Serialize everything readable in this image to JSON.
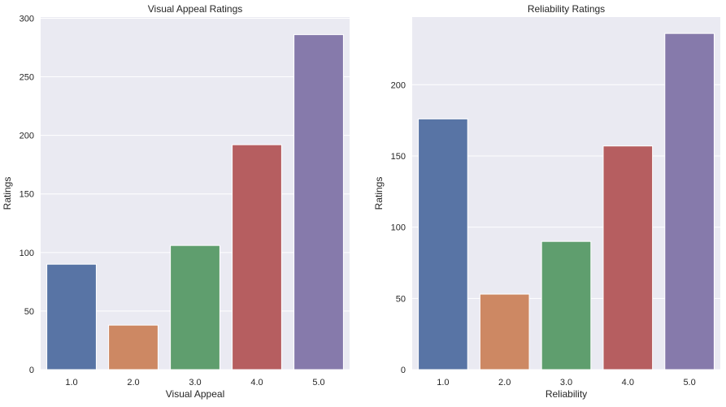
{
  "chart_data": [
    {
      "type": "bar",
      "title": "Visual Appeal Ratings",
      "xlabel": "Visual Appeal",
      "ylabel": "Ratings",
      "categories": [
        "1.0",
        "2.0",
        "3.0",
        "4.0",
        "5.0"
      ],
      "values": [
        90,
        38,
        106,
        192,
        286
      ],
      "ylim": [
        0,
        301
      ],
      "yticks": [
        0,
        50,
        100,
        150,
        200,
        250,
        300
      ],
      "colors": [
        "#5874a5",
        "#cd8863",
        "#5f9e6e",
        "#b65e60",
        "#867aab"
      ],
      "grid": true,
      "background": "#eaeaf2"
    },
    {
      "type": "bar",
      "title": "Reliability Ratings",
      "xlabel": "Reliability",
      "ylabel": "Ratings",
      "categories": [
        "1.0",
        "2.0",
        "3.0",
        "4.0",
        "5.0"
      ],
      "values": [
        176,
        53,
        90,
        157,
        236
      ],
      "ylim": [
        0,
        247.5
      ],
      "yticks": [
        0,
        50,
        100,
        150,
        200
      ],
      "colors": [
        "#5874a5",
        "#cd8863",
        "#5f9e6e",
        "#b65e60",
        "#867aab"
      ],
      "grid": true,
      "background": "#eaeaf2"
    }
  ]
}
